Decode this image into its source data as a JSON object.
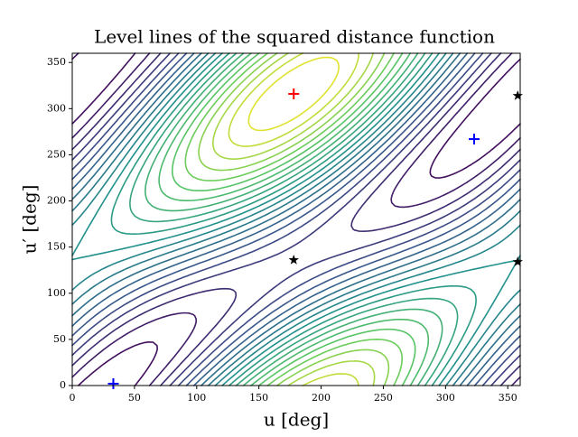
{
  "chart_data": {
    "type": "contour",
    "title": "Level lines of the squared distance function",
    "x_label": "u [deg]",
    "y_label": "u′ [deg]",
    "xlim": [
      0,
      360
    ],
    "ylim": [
      0,
      360
    ],
    "xticks": [
      0,
      50,
      100,
      150,
      200,
      250,
      300,
      350
    ],
    "yticks": [
      0,
      50,
      100,
      150,
      200,
      250,
      300,
      350
    ],
    "colormap": "viridis",
    "series": [
      {
        "marker": "plus",
        "color": "#ff0000",
        "x": [
          178
        ],
        "y": [
          316
        ]
      },
      {
        "marker": "plus",
        "color": "#0000ff",
        "x": [
          323,
          33
        ],
        "y": [
          267,
          2
        ]
      },
      {
        "marker": "star",
        "color": "#000000",
        "x": [
          178,
          358,
          358
        ],
        "y": [
          136,
          314,
          134
        ]
      }
    ]
  }
}
